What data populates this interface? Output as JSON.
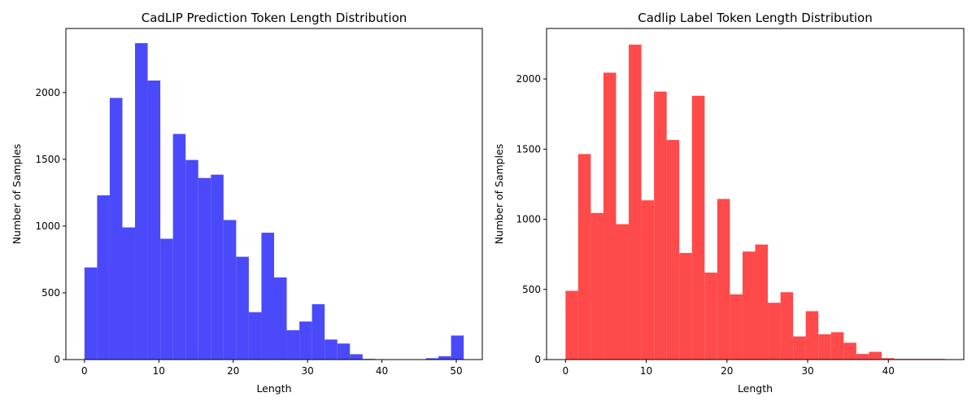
{
  "chart_data": [
    {
      "type": "bar",
      "title": "CadLIP Prediction Token Length Distribution",
      "xlabel": "Length",
      "ylabel": "Number of Samples",
      "xlim": [
        -2.5,
        53.5
      ],
      "ylim": [
        0,
        2480
      ],
      "xticks": [
        0,
        10,
        20,
        30,
        40,
        50
      ],
      "yticks": [
        0,
        500,
        1000,
        1500,
        2000
      ],
      "bin_edges": [
        0,
        1.7,
        3.4,
        5.1,
        6.8,
        8.5,
        10.2,
        11.9,
        13.6,
        15.3,
        17.0,
        18.7,
        20.4,
        22.1,
        23.8,
        25.5,
        27.2,
        28.9,
        30.6,
        32.3,
        34.0,
        35.7,
        37.4,
        39.1,
        40.8,
        42.5,
        44.2,
        45.9,
        47.6,
        49.3,
        51.0
      ],
      "values": [
        690,
        1230,
        1960,
        990,
        2370,
        2090,
        905,
        1690,
        1495,
        1360,
        1385,
        1045,
        770,
        355,
        950,
        615,
        220,
        285,
        415,
        150,
        120,
        40,
        5,
        0,
        0,
        0,
        0,
        10,
        25,
        180
      ],
      "color": "#4a4afb",
      "grid": false
    },
    {
      "type": "bar",
      "title": "Cadlip Label Token Length Distribution",
      "xlabel": "Length",
      "ylabel": "Number of Samples",
      "xlim": [
        -2.35,
        49.35
      ],
      "ylim": [
        0,
        2360
      ],
      "xticks": [
        0,
        10,
        20,
        30,
        40
      ],
      "yticks": [
        0,
        500,
        1000,
        1500,
        2000
      ],
      "bin_edges": [
        0,
        1.567,
        3.133,
        4.7,
        6.267,
        7.833,
        9.4,
        10.967,
        12.533,
        14.1,
        15.667,
        17.233,
        18.8,
        20.367,
        21.933,
        23.5,
        25.067,
        26.633,
        28.2,
        29.767,
        31.333,
        32.9,
        34.467,
        36.033,
        37.6,
        39.167,
        40.733,
        42.3,
        43.867,
        45.433,
        47.0
      ],
      "values": [
        490,
        1465,
        1045,
        2045,
        965,
        2245,
        1135,
        1910,
        1565,
        760,
        1880,
        620,
        1145,
        465,
        770,
        820,
        405,
        480,
        165,
        345,
        180,
        195,
        120,
        40,
        55,
        10,
        5,
        5,
        5,
        5
      ],
      "color": "#fe4a4a",
      "grid": false
    }
  ]
}
